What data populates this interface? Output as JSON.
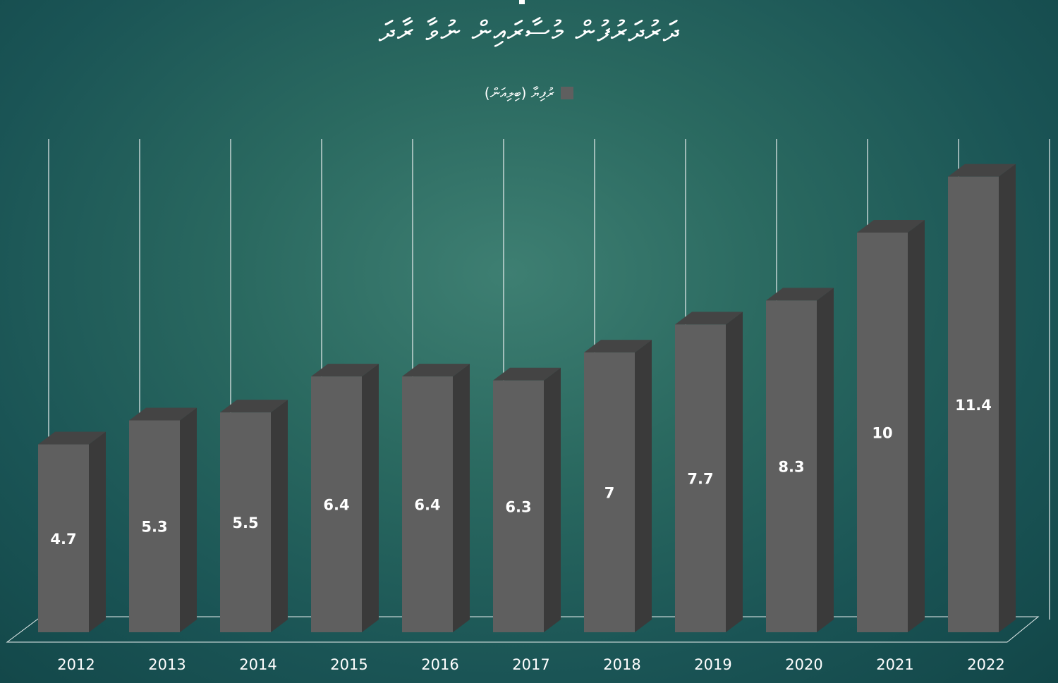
{
  "chart_data": {
    "type": "bar",
    "title": "ދަރުދަރުފުން މުސާރައިން ނުވާ ރާދަ",
    "categories": [
      "2012",
      "2013",
      "2014",
      "2015",
      "2016",
      "2017",
      "2018",
      "2019",
      "2020",
      "2021",
      "2022"
    ],
    "series": [
      {
        "name": "ރުފިޔާ (ބިލިއަން)",
        "values": [
          4.7,
          5.3,
          5.5,
          6.4,
          6.4,
          6.3,
          7,
          7.7,
          8.3,
          10,
          11.4
        ]
      }
    ],
    "data_labels": [
      "4.7",
      "5.3",
      "5.5",
      "6.4",
      "6.4",
      "6.3",
      "7",
      "7.7",
      "8.3",
      "10",
      "11.4"
    ],
    "ylim": [
      0,
      12
    ],
    "bar_style": "3d",
    "grid": "vertical",
    "legend_position": "top-center",
    "colors": {
      "bar_front": "#5f5f5f",
      "bar_side": "#3a3a3a",
      "bar_top": "#444444",
      "grid": "#e8eeee",
      "text": "#ffffff"
    }
  }
}
